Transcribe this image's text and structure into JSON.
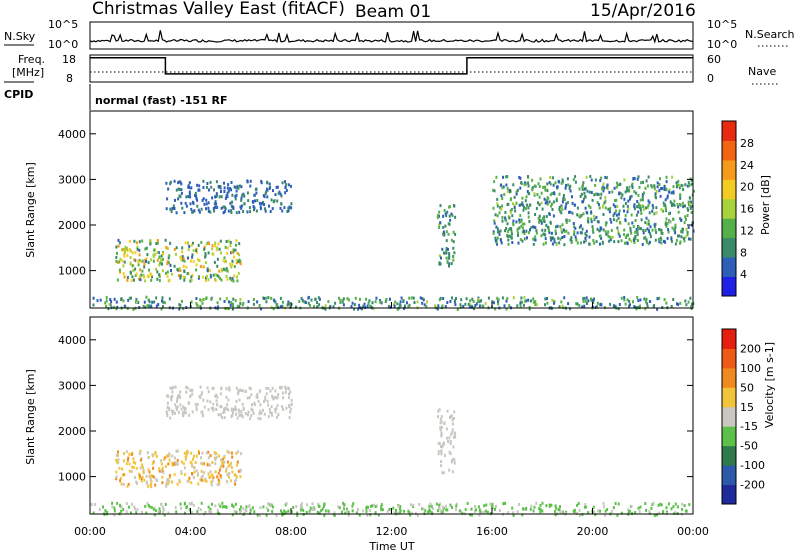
{
  "header": {
    "title": "Christmas Valley East (fitACF)",
    "beam": "Beam 01",
    "date": "15/Apr/2016"
  },
  "noise_panel": {
    "left_label": "N.Sky",
    "right_label": "N.Search",
    "y_ticks_left": [
      "10^5",
      "10^0"
    ],
    "y_ticks_right": [
      "10^5",
      "10^0"
    ]
  },
  "freq_panel": {
    "left_label_line1": "Freq.",
    "left_label_line2": "[MHz]",
    "right_label": "Nave",
    "y_ticks_left": [
      "18",
      "8"
    ],
    "y_ticks_right": [
      "60",
      "0"
    ],
    "freq_steps": [
      {
        "start_hour": 0.0,
        "end_hour": 3.0,
        "freq_mhz": 17.0
      },
      {
        "start_hour": 3.0,
        "end_hour": 15.0,
        "freq_mhz": 11.0
      },
      {
        "start_hour": 15.0,
        "end_hour": 24.0,
        "freq_mhz": 17.0
      }
    ]
  },
  "cpid_panel": {
    "label": "CPID",
    "text": "normal (fast)  -151 RF"
  },
  "x_axis": {
    "ticks": [
      "00:00",
      "04:00",
      "08:00",
      "12:00",
      "16:00",
      "20:00",
      "00:00"
    ],
    "label": "Time UT"
  },
  "colors": {
    "power_scale": [
      "#1f1fe6",
      "#2e5fb8",
      "#3a8a6a",
      "#56b04a",
      "#a8d23c",
      "#f2cc22",
      "#f59a1a",
      "#f06414",
      "#e82a10"
    ],
    "velocity_scale": [
      "#1f2a9a",
      "#2c5aa8",
      "#2e7a4a",
      "#5cc04a",
      "#c8c8c0",
      "#f2c43c",
      "#f08a20",
      "#ee5a14",
      "#e61e10"
    ]
  },
  "chart_data": [
    {
      "type": "heatmap",
      "title": "",
      "xlabel": "",
      "ylabel": "Slant Range [km]",
      "xlim": [
        0,
        24
      ],
      "ylim": [
        180,
        4500
      ],
      "y_ticks": [
        "4000",
        "3000",
        "2000",
        "1000"
      ],
      "colorbar": {
        "label": "Power [dB]",
        "ticks": [
          "28",
          "24",
          "20",
          "16",
          "12",
          "8",
          "4"
        ],
        "range": [
          0,
          30
        ]
      },
      "features": [
        {
          "description_hint": "strong echo",
          "t": [
            1.0,
            6.0
          ],
          "range_km": [
            800,
            1700
          ],
          "value_db": [
            6,
            22
          ]
        },
        {
          "description_hint": "arc",
          "t": [
            3.0,
            8.0
          ],
          "range_km": [
            2300,
            3000
          ],
          "value_db": [
            4,
            8
          ]
        },
        {
          "description_hint": "patch",
          "t": [
            13.8,
            14.5
          ],
          "range_km": [
            1100,
            2500
          ],
          "value_db": [
            4,
            14
          ]
        },
        {
          "description_hint": "patch",
          "t": [
            16.0,
            24.0
          ],
          "range_km": [
            1600,
            3100
          ],
          "value_db": [
            4,
            14
          ]
        },
        {
          "description_hint": "near range",
          "t": [
            0.0,
            24.0
          ],
          "range_km": [
            180,
            450
          ],
          "value_db": [
            4,
            14
          ]
        }
      ]
    },
    {
      "type": "heatmap",
      "title": "",
      "xlabel": "Time UT",
      "ylabel": "Slant Range [km]",
      "xlim": [
        0,
        24
      ],
      "ylim": [
        180,
        4500
      ],
      "y_ticks": [
        "4000",
        "3000",
        "2000",
        "1000"
      ],
      "colorbar": {
        "label": "Velocity [m s-1]",
        "ticks": [
          "200",
          "100",
          "50",
          "15",
          "-15",
          "-50",
          "-100",
          "-200"
        ],
        "range": [
          -250,
          250
        ]
      },
      "features": [
        {
          "description_hint": "echo",
          "t": [
            1.0,
            6.0
          ],
          "range_km": [
            800,
            1600
          ],
          "value_ms": [
            -15,
            100
          ]
        },
        {
          "description_hint": "arc",
          "t": [
            3.0,
            8.0
          ],
          "range_km": [
            2300,
            3000
          ],
          "value_ms": [
            -15,
            15
          ]
        },
        {
          "description_hint": "patch",
          "t": [
            13.8,
            14.5
          ],
          "range_km": [
            1100,
            2500
          ],
          "value_ms": [
            -15,
            15
          ]
        },
        {
          "description_hint": "near range",
          "t": [
            0.0,
            24.0
          ],
          "range_km": [
            180,
            450
          ],
          "value_ms": [
            -50,
            -15
          ]
        }
      ]
    }
  ]
}
